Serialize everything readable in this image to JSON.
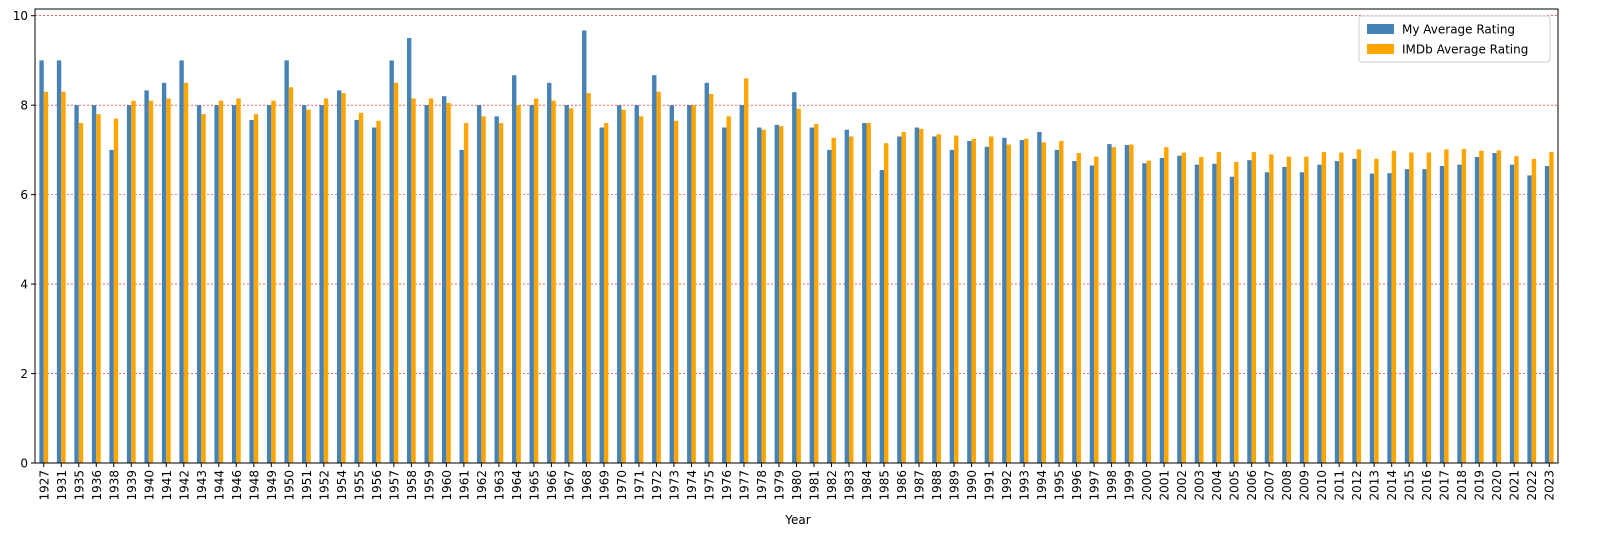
{
  "chart_data": {
    "type": "bar",
    "title": "",
    "xlabel": "Year",
    "ylabel": "",
    "ylim": [
      0,
      10.15
    ],
    "yticks": [
      0,
      2,
      4,
      6,
      8,
      10
    ],
    "grid": "horizontal dashed red lines at y-ticks",
    "legend_position": "top-right",
    "colors": {
      "My Average Rating": "#4682b4",
      "IMDb Average Rating": "#ffa500",
      "grid": "#ff0000"
    },
    "categories": [
      "1927",
      "1931",
      "1935",
      "1936",
      "1938",
      "1939",
      "1940",
      "1941",
      "1942",
      "1943",
      "1944",
      "1946",
      "1948",
      "1949",
      "1950",
      "1951",
      "1952",
      "1954",
      "1955",
      "1956",
      "1957",
      "1958",
      "1959",
      "1960",
      "1961",
      "1962",
      "1963",
      "1964",
      "1965",
      "1966",
      "1967",
      "1968",
      "1969",
      "1970",
      "1971",
      "1972",
      "1973",
      "1974",
      "1975",
      "1976",
      "1977",
      "1978",
      "1979",
      "1980",
      "1981",
      "1982",
      "1983",
      "1984",
      "1985",
      "1986",
      "1987",
      "1988",
      "1989",
      "1990",
      "1991",
      "1992",
      "1993",
      "1994",
      "1995",
      "1996",
      "1997",
      "1998",
      "1999",
      "2000",
      "2001",
      "2002",
      "2003",
      "2004",
      "2005",
      "2006",
      "2007",
      "2008",
      "2009",
      "2010",
      "2011",
      "2012",
      "2013",
      "2014",
      "2015",
      "2016",
      "2017",
      "2018",
      "2019",
      "2020",
      "2021",
      "2022",
      "2023"
    ],
    "series": [
      {
        "name": "My Average Rating",
        "values": [
          9.0,
          9.0,
          8.0,
          8.0,
          7.0,
          8.0,
          8.33,
          8.5,
          9.0,
          8.0,
          8.0,
          8.0,
          7.67,
          8.0,
          9.0,
          8.0,
          8.0,
          8.33,
          7.67,
          7.5,
          9.0,
          9.5,
          8.0,
          8.2,
          7.0,
          8.0,
          7.75,
          8.67,
          8.0,
          8.5,
          8.0,
          9.67,
          7.5,
          8.0,
          8.0,
          8.67,
          8.0,
          8.0,
          8.5,
          7.5,
          8.0,
          7.5,
          7.56,
          8.29,
          7.5,
          7.0,
          7.45,
          7.6,
          6.55,
          7.3,
          7.5,
          7.3,
          7.0,
          7.2,
          7.07,
          7.27,
          7.22,
          7.4,
          7.0,
          6.75,
          6.65,
          7.13,
          7.11,
          6.7,
          6.82,
          6.87,
          6.67,
          6.69,
          6.4,
          6.77,
          6.5,
          6.62,
          6.5,
          6.67,
          6.75,
          6.8,
          6.47,
          6.48,
          6.57,
          6.57,
          6.64,
          6.67,
          6.84,
          6.93,
          6.67,
          6.43,
          6.64
        ]
      },
      {
        "name": "IMDb Average Rating",
        "values": [
          8.3,
          8.3,
          7.6,
          7.8,
          7.7,
          8.1,
          8.1,
          8.15,
          8.5,
          7.8,
          8.1,
          8.15,
          7.8,
          8.1,
          8.4,
          7.9,
          8.15,
          8.27,
          7.83,
          7.65,
          8.5,
          8.15,
          8.15,
          8.05,
          7.6,
          7.75,
          7.6,
          8.0,
          8.15,
          8.1,
          7.93,
          8.27,
          7.6,
          7.9,
          7.75,
          8.3,
          7.65,
          8.0,
          8.25,
          7.75,
          8.6,
          7.45,
          7.53,
          7.92,
          7.58,
          7.27,
          7.3,
          7.6,
          7.15,
          7.4,
          7.47,
          7.35,
          7.32,
          7.25,
          7.3,
          7.12,
          7.25,
          7.17,
          7.2,
          6.93,
          6.85,
          7.06,
          7.12,
          6.76,
          7.06,
          6.94,
          6.84,
          6.95,
          6.73,
          6.95,
          6.9,
          6.85,
          6.85,
          6.95,
          6.94,
          7.01,
          6.8,
          6.98,
          6.94,
          6.94,
          7.01,
          7.02,
          6.98,
          6.99,
          6.86,
          6.8,
          6.95
        ]
      }
    ]
  }
}
